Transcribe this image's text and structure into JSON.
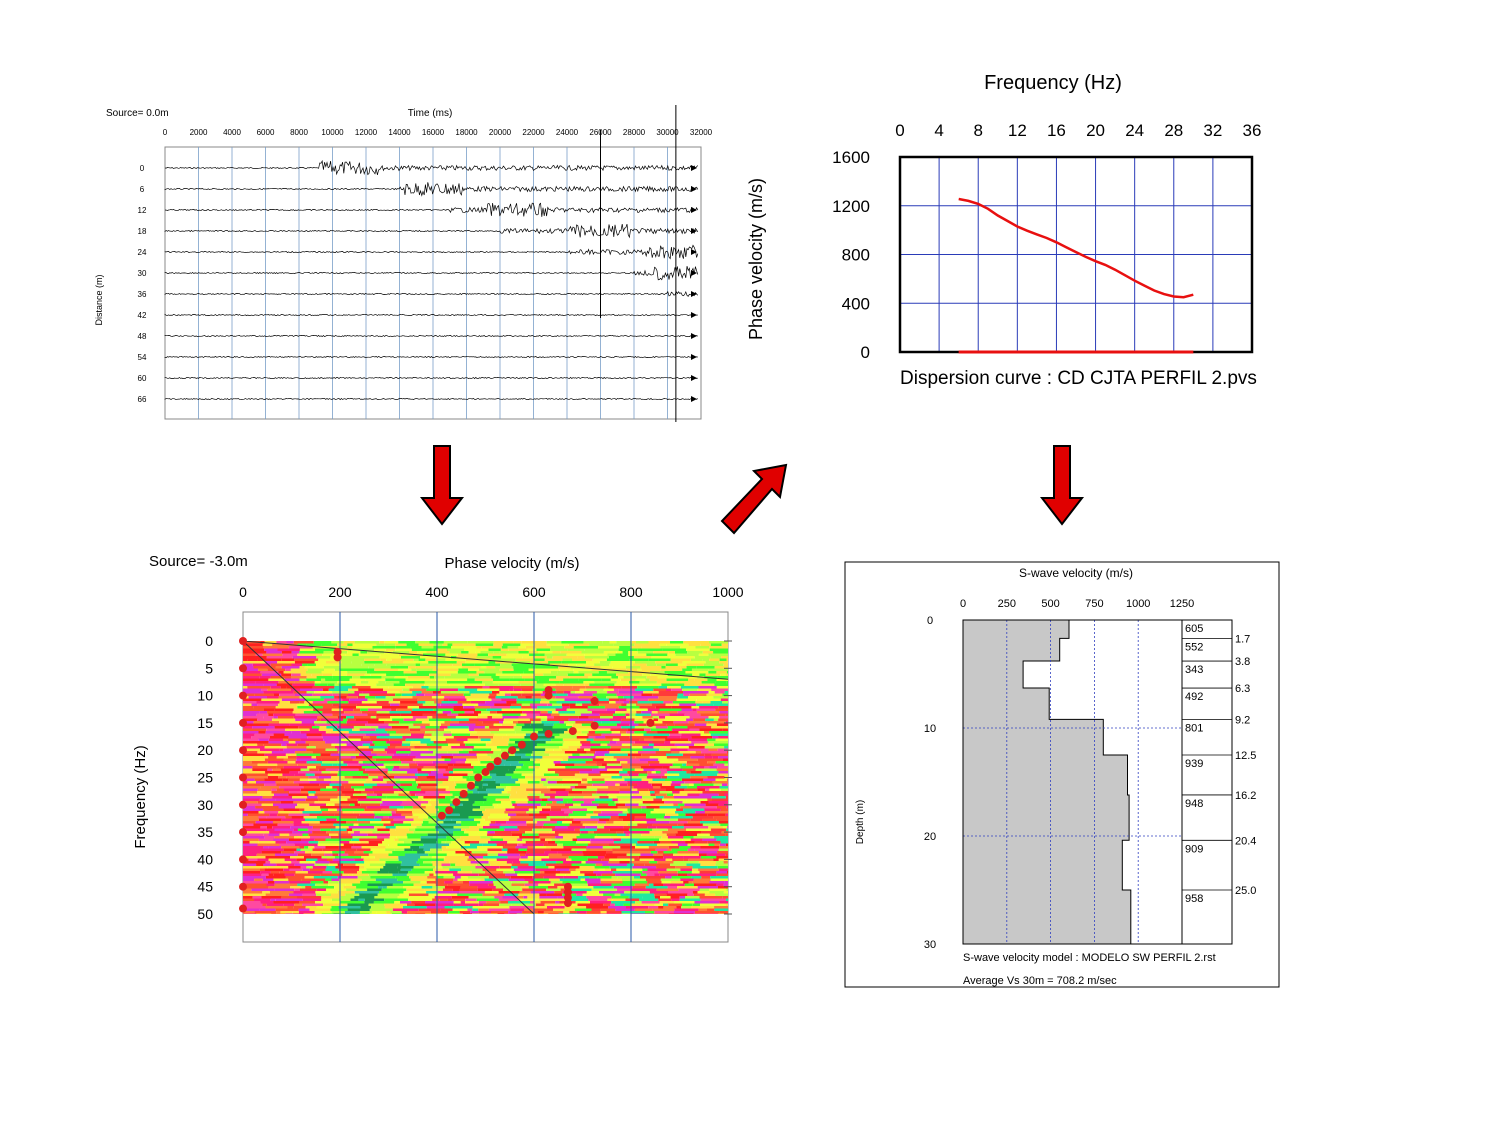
{
  "colors": {
    "arrow_fill": "#e00000",
    "dispersion_line": "#e81010",
    "grid_blue": "#2a3bb8",
    "profile_fill": "#c8c8c8",
    "pick_points": "#e02020"
  },
  "arrows": [
    {
      "name": "down-arrow-left",
      "direction": "down"
    },
    {
      "name": "up-right-arrow-center",
      "direction": "up-right"
    },
    {
      "name": "down-arrow-right",
      "direction": "down"
    }
  ],
  "chart_data": [
    {
      "id": "seismogram",
      "type": "line",
      "source_label": "Source=  0.0m",
      "xlabel": "Time (ms)",
      "ylabel": "Distance (m)",
      "x_ticks": [
        "0",
        "2000",
        "4000",
        "6000",
        "8000",
        "10000",
        "12000",
        "14000",
        "16000",
        "18000",
        "20000",
        "22000",
        "24000",
        "26000",
        "28000",
        "30000",
        "32000"
      ],
      "xlim": [
        0,
        32000
      ],
      "y_ticks": [
        "0",
        "6",
        "12",
        "18",
        "24",
        "30",
        "36",
        "42",
        "48",
        "54",
        "60",
        "66"
      ],
      "series": [
        {
          "offset_m": 0,
          "onset_ms": 10000,
          "burst_ms": 11000
        },
        {
          "offset_m": 6,
          "onset_ms": 14000,
          "burst_ms": 16000
        },
        {
          "offset_m": 12,
          "onset_ms": 17000,
          "burst_ms": 21000
        },
        {
          "offset_m": 18,
          "onset_ms": 20000,
          "burst_ms": 26000
        },
        {
          "offset_m": 24,
          "onset_ms": 24000,
          "burst_ms": 30500
        },
        {
          "offset_m": 30,
          "onset_ms": 28000,
          "burst_ms": 31000
        },
        {
          "offset_m": 36,
          "onset_ms": 30000,
          "burst_ms": 0
        },
        {
          "offset_m": 42,
          "onset_ms": 0,
          "burst_ms": 0
        },
        {
          "offset_m": 48,
          "onset_ms": 0,
          "burst_ms": 0
        },
        {
          "offset_m": 54,
          "onset_ms": 0,
          "burst_ms": 0
        },
        {
          "offset_m": 60,
          "onset_ms": 0,
          "burst_ms": 0
        },
        {
          "offset_m": 66,
          "onset_ms": 0,
          "burst_ms": 0
        }
      ]
    },
    {
      "id": "dispersion-curve",
      "type": "line",
      "title": "Frequency (Hz)",
      "xlabel": "Frequency (Hz)",
      "ylabel": "Phase velocity (m/s)",
      "caption": "Dispersion curve : CD CJTA PERFIL 2.pvs",
      "x_ticks": [
        "0",
        "4",
        "8",
        "12",
        "16",
        "20",
        "24",
        "28",
        "32",
        "36"
      ],
      "xlim": [
        0,
        36
      ],
      "y_ticks": [
        "1600",
        "1200",
        "800",
        "400",
        "0"
      ],
      "ylim": [
        0,
        1600
      ],
      "grid": true,
      "x": [
        6,
        7,
        8,
        9,
        10,
        11,
        12,
        13,
        14,
        15,
        16,
        17,
        18,
        19,
        20,
        21,
        22,
        23,
        24,
        25,
        26,
        27,
        28,
        29,
        30
      ],
      "y": [
        1255,
        1240,
        1215,
        1175,
        1120,
        1075,
        1030,
        995,
        965,
        935,
        900,
        860,
        820,
        780,
        745,
        715,
        675,
        630,
        585,
        545,
        505,
        475,
        455,
        450,
        470
      ],
      "baseline_range": [
        6,
        30
      ]
    },
    {
      "id": "dispersion-image",
      "type": "heatmap",
      "source_label": "Source= -3.0m",
      "xlabel": "Phase velocity (m/s)",
      "ylabel": "Frequency (Hz)",
      "x_ticks": [
        "0",
        "200",
        "400",
        "600",
        "800",
        "1000"
      ],
      "xlim": [
        0,
        1000
      ],
      "y_ticks": [
        "0",
        "5",
        "10",
        "15",
        "20",
        "25",
        "30",
        "35",
        "40",
        "45",
        "50"
      ],
      "ylim": [
        0,
        50
      ],
      "picks": [
        {
          "v": 195,
          "f": 2
        },
        {
          "v": 195,
          "f": 3
        },
        {
          "v": 630,
          "f": 9
        },
        {
          "v": 630,
          "f": 10
        },
        {
          "v": 725,
          "f": 11
        },
        {
          "v": 840,
          "f": 15
        },
        {
          "v": 725,
          "f": 15.5
        },
        {
          "v": 680,
          "f": 16.5
        },
        {
          "v": 630,
          "f": 17
        },
        {
          "v": 600,
          "f": 17.5
        },
        {
          "v": 575,
          "f": 19
        },
        {
          "v": 555,
          "f": 20
        },
        {
          "v": 540,
          "f": 21
        },
        {
          "v": 525,
          "f": 22
        },
        {
          "v": 510,
          "f": 23
        },
        {
          "v": 500,
          "f": 24
        },
        {
          "v": 485,
          "f": 25
        },
        {
          "v": 470,
          "f": 26.5
        },
        {
          "v": 455,
          "f": 28
        },
        {
          "v": 440,
          "f": 29.5
        },
        {
          "v": 425,
          "f": 31
        },
        {
          "v": 410,
          "f": 32
        },
        {
          "v": 670,
          "f": 45
        },
        {
          "v": 670,
          "f": 46
        },
        {
          "v": 670,
          "f": 47
        },
        {
          "v": 670,
          "f": 48
        },
        {
          "v": 0,
          "f": 0
        },
        {
          "v": 0,
          "f": 5
        },
        {
          "v": 0,
          "f": 10
        },
        {
          "v": 0,
          "f": 15
        },
        {
          "v": 0,
          "f": 20
        },
        {
          "v": 0,
          "f": 25
        },
        {
          "v": 0,
          "f": 30
        },
        {
          "v": 0,
          "f": 35
        },
        {
          "v": 0,
          "f": 40
        },
        {
          "v": 0,
          "f": 45
        },
        {
          "v": 0,
          "f": 49
        }
      ]
    },
    {
      "id": "vs-profile",
      "type": "line",
      "title": "S-wave velocity (m/s)",
      "ylabel": "Depth (m)",
      "x_ticks": [
        "0",
        "250",
        "500",
        "750",
        "1000",
        "1250"
      ],
      "xlim": [
        0,
        1250
      ],
      "y_ticks": [
        "0",
        "10",
        "20",
        "30"
      ],
      "ylim": [
        0,
        30
      ],
      "layers": [
        {
          "top": 0,
          "bottom": 1.7,
          "vs": 605
        },
        {
          "top": 1.7,
          "bottom": 3.8,
          "vs": 552
        },
        {
          "top": 3.8,
          "bottom": 6.3,
          "vs": 343
        },
        {
          "top": 6.3,
          "bottom": 9.2,
          "vs": 492
        },
        {
          "top": 9.2,
          "bottom": 12.5,
          "vs": 801
        },
        {
          "top": 12.5,
          "bottom": 16.2,
          "vs": 939
        },
        {
          "top": 16.2,
          "bottom": 20.4,
          "vs": 948
        },
        {
          "top": 20.4,
          "bottom": 25.0,
          "vs": 909
        },
        {
          "top": 25.0,
          "bottom": 30,
          "vs": 958
        }
      ],
      "velocity_labels": [
        "605",
        "552",
        "343",
        "492",
        "801",
        "939",
        "948",
        "909",
        "958"
      ],
      "depth_labels": [
        "1.7",
        "3.8",
        "6.3",
        "9.2",
        "12.5",
        "16.2",
        "20.4",
        "25.0"
      ],
      "model_label": "S-wave velocity model  : MODELO SW PERFIL 2.rst",
      "average_label": "Average Vs 30m = 708.2 m/sec"
    }
  ]
}
